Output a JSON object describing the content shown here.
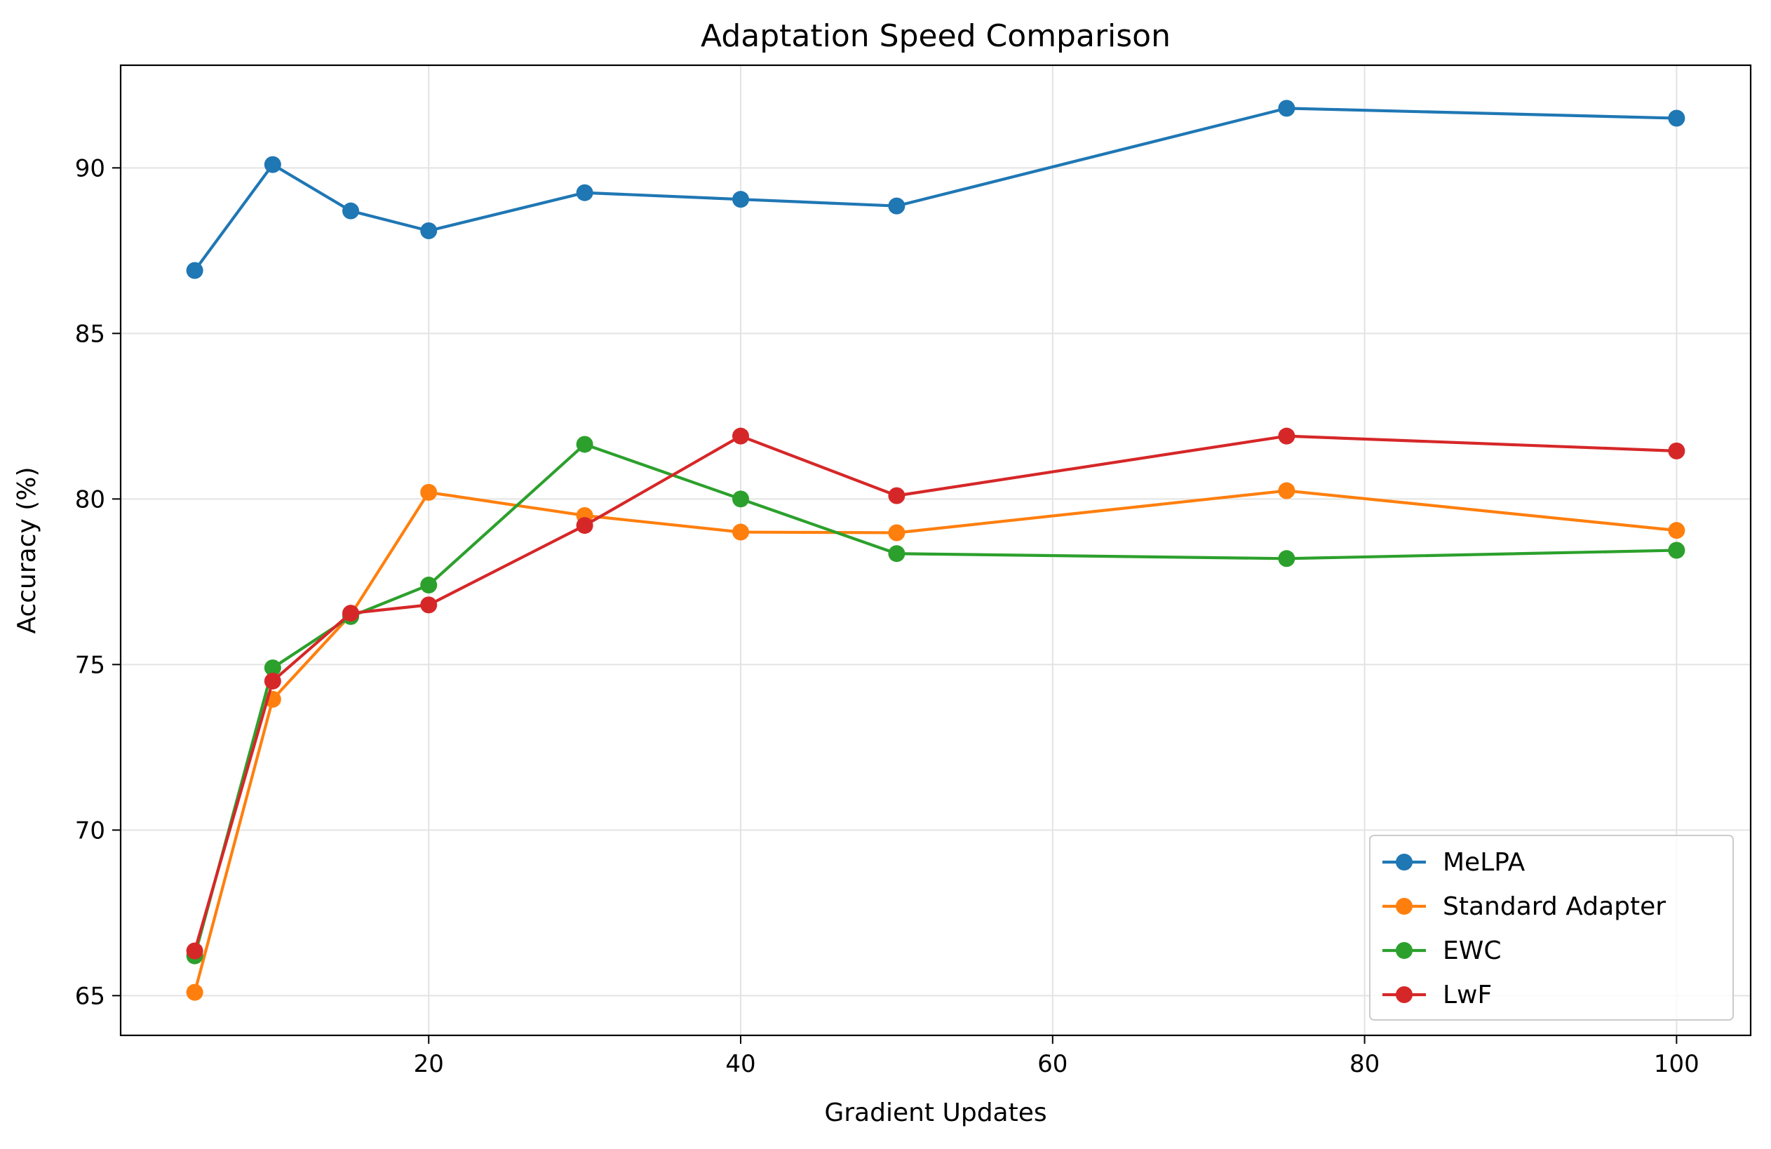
{
  "chart_data": {
    "type": "line",
    "title": "Adaptation Speed Comparison",
    "xlabel": "Gradient Updates",
    "ylabel": "Accuracy (%)",
    "x": [
      5,
      10,
      15,
      20,
      30,
      40,
      50,
      75,
      100
    ],
    "xlim": [
      0.25,
      104.75
    ],
    "ylim": [
      63.8,
      93.1
    ],
    "xticks": [
      20,
      40,
      60,
      80,
      100
    ],
    "yticks": [
      65,
      70,
      75,
      80,
      85,
      90
    ],
    "grid": true,
    "legend_position": "lower-right",
    "series": [
      {
        "name": "MeLPA",
        "color": "#1f77b4",
        "values": [
          86.9,
          90.1,
          88.7,
          88.1,
          89.25,
          89.05,
          88.85,
          91.8,
          91.5
        ]
      },
      {
        "name": "Standard Adapter",
        "color": "#ff7f0e",
        "values": [
          65.1,
          73.95,
          76.5,
          80.2,
          79.5,
          79.0,
          78.98,
          80.25,
          79.05
        ]
      },
      {
        "name": "EWC",
        "color": "#2ca02c",
        "values": [
          66.2,
          74.9,
          76.45,
          77.4,
          81.65,
          80.0,
          78.35,
          78.2,
          78.45
        ]
      },
      {
        "name": "LwF",
        "color": "#d62728",
        "values": [
          66.35,
          74.5,
          76.55,
          76.8,
          79.2,
          81.9,
          80.1,
          81.9,
          81.45
        ]
      }
    ]
  }
}
